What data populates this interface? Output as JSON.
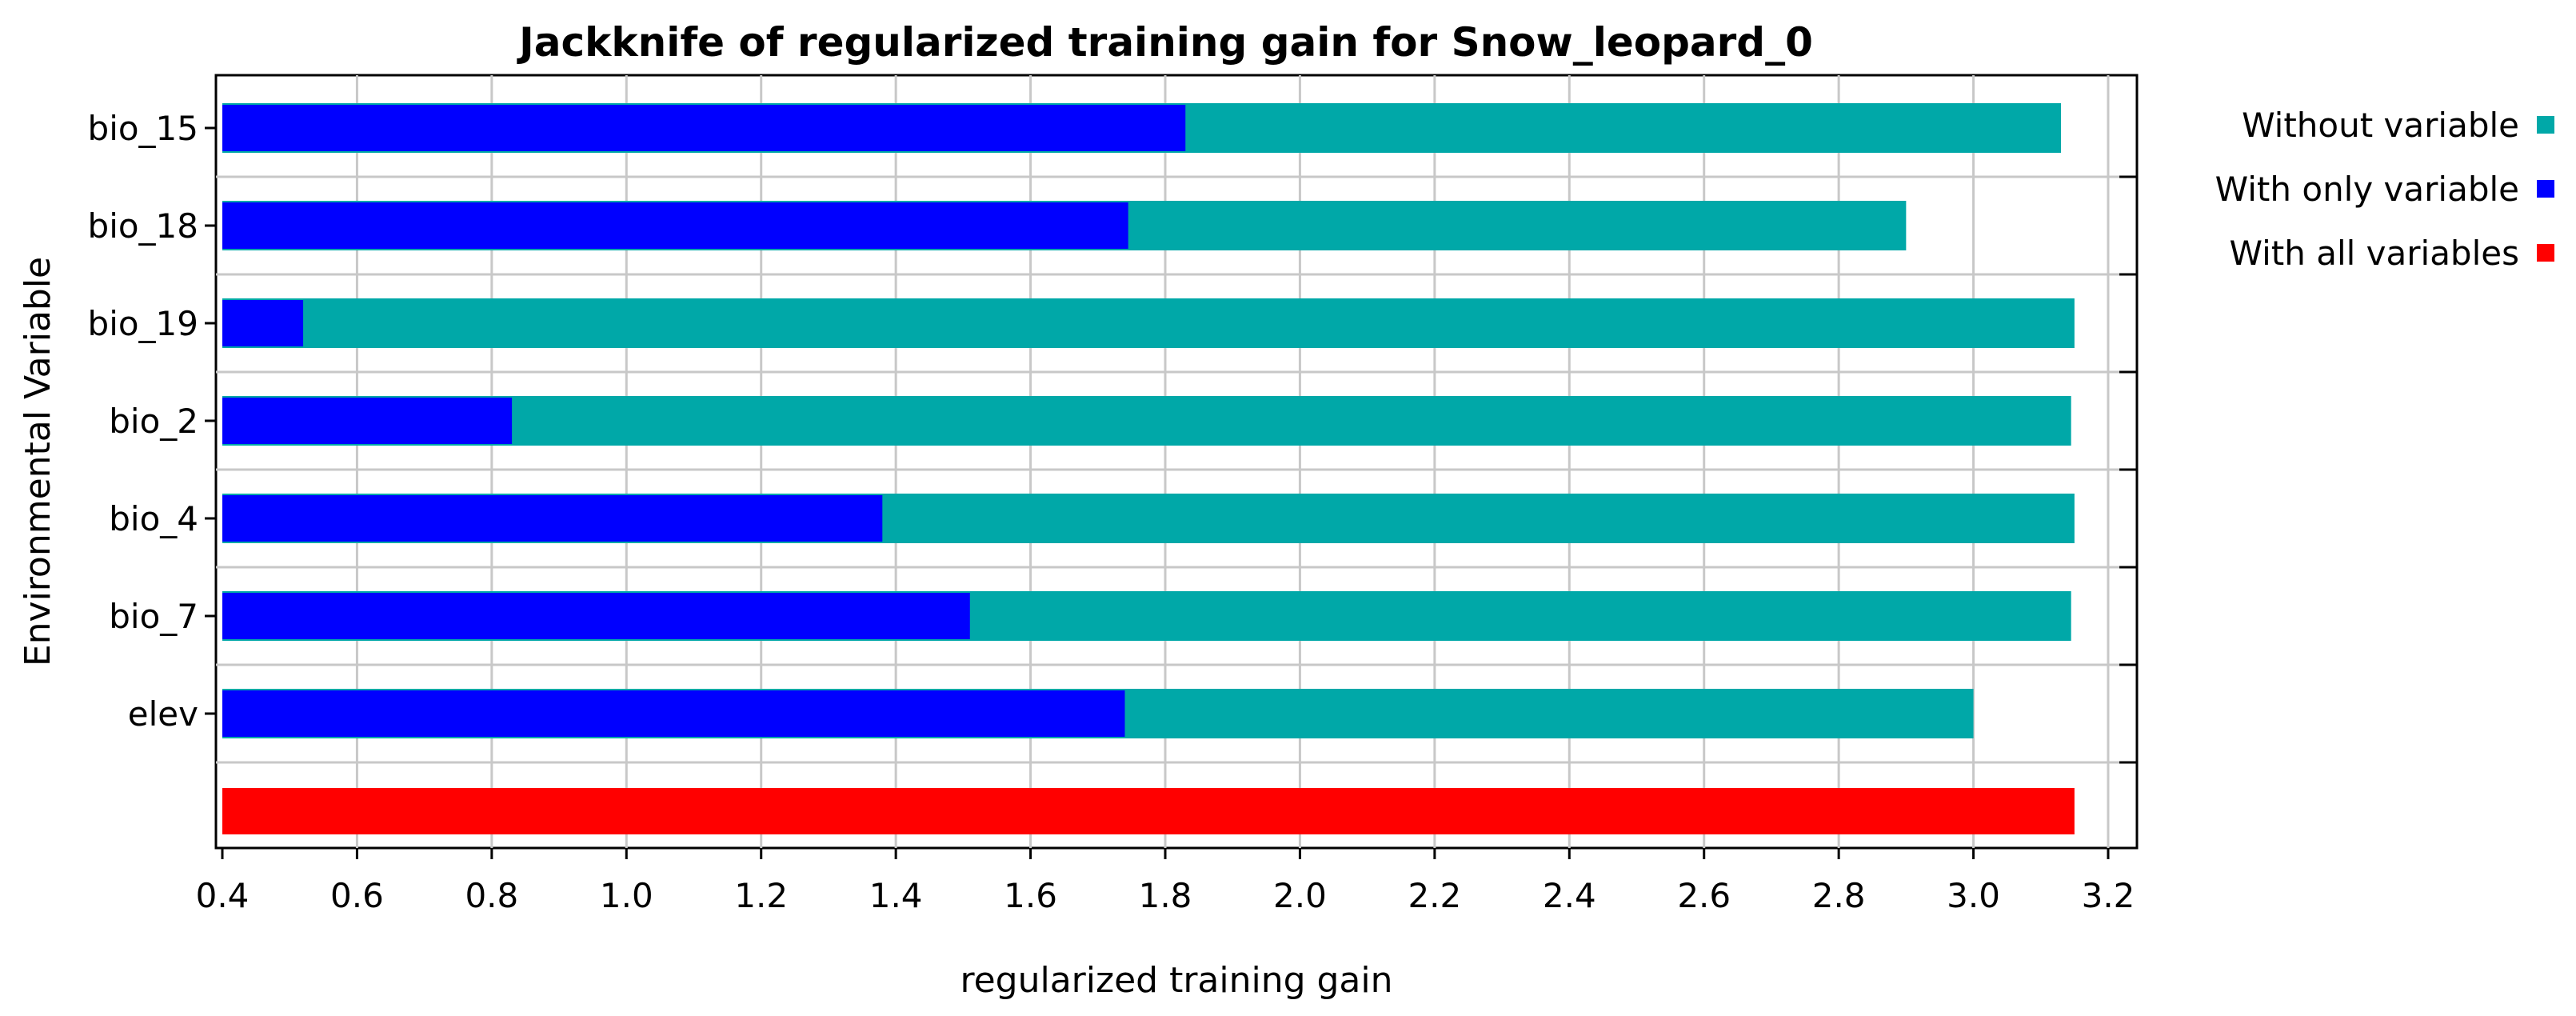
{
  "chart_data": {
    "type": "bar",
    "title": "Jackknife of regularized training gain for Snow_leopard_0",
    "xlabel": "regularized training gain",
    "ylabel": "Environmental Variable",
    "xlim": [
      0.4,
      3.2
    ],
    "x_ticks": [
      "0.4",
      "0.6",
      "0.8",
      "1.0",
      "1.2",
      "1.4",
      "1.6",
      "1.8",
      "2.0",
      "2.2",
      "2.4",
      "2.6",
      "2.8",
      "3.0",
      "3.2"
    ],
    "grid": true,
    "legend_position": "right",
    "categories": [
      "bio_15",
      "bio_18",
      "bio_19",
      "bio_2",
      "bio_4",
      "bio_7",
      "elev"
    ],
    "series": [
      {
        "name": "Without variable",
        "color": "#00a8a8",
        "values": [
          3.13,
          2.9,
          3.15,
          3.145,
          3.15,
          3.145,
          3.0
        ]
      },
      {
        "name": "With only variable",
        "color": "#0000ff",
        "values": [
          1.83,
          1.745,
          0.52,
          0.83,
          1.38,
          1.51,
          1.74
        ]
      }
    ],
    "all_variables": {
      "name": "With all variables",
      "color": "#ff0000",
      "value": 3.15
    }
  }
}
